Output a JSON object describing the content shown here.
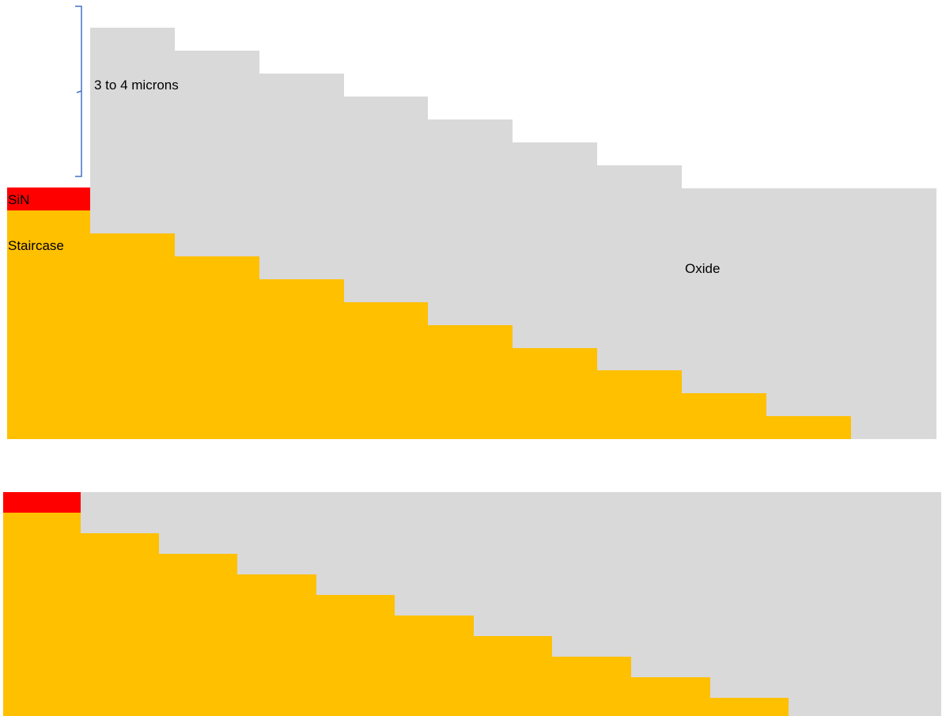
{
  "colors": {
    "oxide": "#d9d9d9",
    "staircase": "#ffc000",
    "sin": "#ff0000",
    "bracket": "#4472c4",
    "text": "#000000",
    "background": "#ffffff"
  },
  "labels": {
    "thickness": "3 to 4 microns",
    "sin": "SiN",
    "staircase": "Staircase",
    "oxide": "Oxide"
  },
  "diagrams": [
    {
      "name": "before-planarization",
      "step_count": 10,
      "has_labels": true
    },
    {
      "name": "after-planarization",
      "step_count": 10,
      "has_labels": false
    }
  ]
}
